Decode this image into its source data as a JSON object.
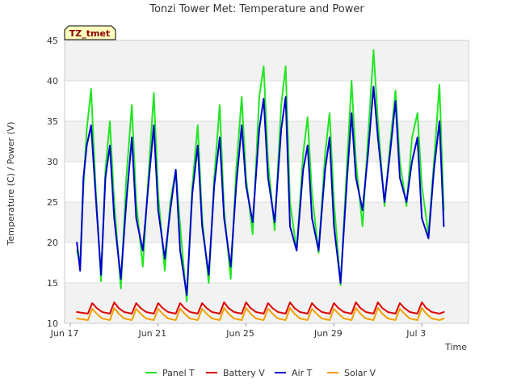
{
  "chart_data": {
    "type": "line",
    "title": "Tonzi Tower Met: Temperature and Power",
    "badge": "TZ_tmet",
    "xlabel": "Time",
    "ylabel": "Temperature (C) / Power (V)",
    "ylim": [
      10,
      45
    ],
    "yticks": [
      10,
      15,
      20,
      25,
      30,
      35,
      40,
      45
    ],
    "xlim": [
      0,
      18
    ],
    "xticks": [
      {
        "day": 0,
        "label": "Jun 17"
      },
      {
        "day": 4,
        "label": "Jun 21"
      },
      {
        "day": 8,
        "label": "Jun 25"
      },
      {
        "day": 12,
        "label": "Jun 29"
      },
      {
        "day": 16,
        "label": "Jul 3"
      }
    ],
    "grid": "horizontal bands",
    "series": [
      {
        "name": "Panel T",
        "color": "#22e622",
        "x": [
          0.3,
          0.45,
          0.6,
          0.75,
          0.95,
          1.15,
          1.4,
          1.6,
          1.8,
          2.0,
          2.3,
          2.55,
          2.8,
          3.0,
          3.3,
          3.55,
          3.8,
          4.0,
          4.3,
          4.55,
          4.8,
          5.0,
          5.3,
          5.55,
          5.8,
          6.0,
          6.3,
          6.55,
          6.8,
          7.0,
          7.3,
          7.55,
          7.8,
          8.0,
          8.3,
          8.6,
          8.8,
          9.0,
          9.3,
          9.6,
          9.8,
          10.0,
          10.3,
          10.6,
          10.8,
          11.0,
          11.3,
          11.6,
          11.8,
          12.0,
          12.3,
          12.6,
          12.8,
          13.0,
          13.3,
          13.55,
          13.8,
          14.0,
          14.3,
          14.55,
          14.8,
          15.0,
          15.3,
          15.55,
          15.8,
          16.0,
          16.3,
          16.55,
          16.8,
          17.0
        ],
        "y": [
          19,
          17.5,
          27,
          34,
          39,
          27,
          15.2,
          29,
          35,
          25,
          14.3,
          28,
          37,
          25,
          17,
          28,
          38.5,
          26,
          16.5,
          25,
          29,
          22,
          12.7,
          27,
          34.5,
          23,
          15,
          28,
          37,
          24,
          15.5,
          29,
          38,
          28,
          21,
          38,
          41.8,
          30,
          21.5,
          37,
          41.8,
          25,
          19,
          31,
          35.5,
          26,
          18.7,
          31,
          36,
          25,
          14.7,
          30,
          40,
          30,
          22,
          33,
          43.8,
          35,
          24.5,
          32,
          38.8,
          30,
          24.5,
          33,
          36,
          27,
          21,
          30,
          39.5,
          24
        ]
      },
      {
        "name": "Battery V",
        "color": "#dd0000",
        "x": [
          0.3,
          0.8,
          1.0,
          1.2,
          1.45,
          1.8,
          2.0,
          2.2,
          2.45,
          2.8,
          3.0,
          3.2,
          3.45,
          3.8,
          4.0,
          4.2,
          4.45,
          4.8,
          5.0,
          5.2,
          5.45,
          5.8,
          6.0,
          6.2,
          6.45,
          6.8,
          7.0,
          7.2,
          7.45,
          7.8,
          8.0,
          8.2,
          8.45,
          8.8,
          9.0,
          9.2,
          9.45,
          9.8,
          10.0,
          10.2,
          10.45,
          10.8,
          11.0,
          11.2,
          11.45,
          11.8,
          12.0,
          12.2,
          12.45,
          12.8,
          13.0,
          13.2,
          13.45,
          13.8,
          14.0,
          14.2,
          14.45,
          14.8,
          15.0,
          15.2,
          15.45,
          15.8,
          16.0,
          16.2,
          16.45,
          16.8,
          17.0
        ],
        "y": [
          11.4,
          11.2,
          12.5,
          11.9,
          11.4,
          11.2,
          12.6,
          11.9,
          11.4,
          11.2,
          12.5,
          11.9,
          11.4,
          11.2,
          12.5,
          11.9,
          11.4,
          11.2,
          12.5,
          11.9,
          11.4,
          11.2,
          12.5,
          11.9,
          11.4,
          11.2,
          12.6,
          11.9,
          11.4,
          11.2,
          12.6,
          11.9,
          11.4,
          11.2,
          12.5,
          11.9,
          11.4,
          11.2,
          12.6,
          11.9,
          11.4,
          11.2,
          12.5,
          11.9,
          11.4,
          11.2,
          12.5,
          11.9,
          11.4,
          11.2,
          12.6,
          11.9,
          11.4,
          11.2,
          12.6,
          11.9,
          11.4,
          11.2,
          12.5,
          11.9,
          11.4,
          11.2,
          12.6,
          11.9,
          11.4,
          11.2,
          11.4
        ]
      },
      {
        "name": "Air T",
        "color": "#0000cc",
        "x": [
          0.3,
          0.45,
          0.6,
          0.75,
          0.95,
          1.15,
          1.4,
          1.6,
          1.8,
          2.0,
          2.3,
          2.55,
          2.8,
          3.0,
          3.3,
          3.55,
          3.8,
          4.0,
          4.3,
          4.55,
          4.8,
          5.0,
          5.3,
          5.55,
          5.8,
          6.0,
          6.3,
          6.55,
          6.8,
          7.0,
          7.3,
          7.55,
          7.8,
          8.0,
          8.3,
          8.6,
          8.8,
          9.0,
          9.3,
          9.6,
          9.8,
          10.0,
          10.3,
          10.6,
          10.8,
          11.0,
          11.3,
          11.6,
          11.8,
          12.0,
          12.3,
          12.6,
          12.8,
          13.0,
          13.3,
          13.55,
          13.8,
          14.0,
          14.3,
          14.55,
          14.8,
          15.0,
          15.3,
          15.55,
          15.8,
          16.0,
          16.3,
          16.55,
          16.8,
          17.0
        ],
        "y": [
          20,
          16.5,
          28,
          32,
          34.5,
          26,
          16,
          28,
          32,
          23,
          15.5,
          25,
          33,
          23,
          19,
          27,
          34.5,
          24,
          18,
          24,
          29,
          19,
          13.5,
          26,
          32,
          22,
          16,
          27,
          33,
          23,
          17,
          27,
          34.5,
          27,
          22.5,
          34,
          37.8,
          28,
          22.5,
          34,
          38,
          22,
          19,
          29,
          32,
          23,
          19,
          29,
          33,
          22,
          15,
          28,
          36,
          28,
          24,
          31,
          39.3,
          33,
          25,
          31,
          37.5,
          28,
          25,
          30,
          33,
          23,
          20.5,
          29,
          35,
          22
        ]
      },
      {
        "name": "Solar V",
        "color": "#f0a000",
        "x": [
          0.3,
          0.8,
          1.0,
          1.2,
          1.45,
          1.8,
          2.0,
          2.2,
          2.45,
          2.8,
          3.0,
          3.2,
          3.45,
          3.8,
          4.0,
          4.2,
          4.45,
          4.8,
          5.0,
          5.2,
          5.45,
          5.8,
          6.0,
          6.2,
          6.45,
          6.8,
          7.0,
          7.2,
          7.45,
          7.8,
          8.0,
          8.2,
          8.45,
          8.8,
          9.0,
          9.2,
          9.45,
          9.8,
          10.0,
          10.2,
          10.45,
          10.8,
          11.0,
          11.2,
          11.45,
          11.8,
          12.0,
          12.2,
          12.45,
          12.8,
          13.0,
          13.2,
          13.45,
          13.8,
          14.0,
          14.2,
          14.45,
          14.8,
          15.0,
          15.2,
          15.45,
          15.8,
          16.0,
          16.2,
          16.45,
          16.8,
          17.0
        ],
        "y": [
          10.6,
          10.4,
          11.8,
          11.2,
          10.6,
          10.4,
          11.9,
          11.2,
          10.6,
          10.4,
          11.8,
          11.2,
          10.6,
          10.4,
          11.8,
          11.2,
          10.6,
          10.4,
          11.8,
          11.2,
          10.6,
          10.4,
          11.8,
          11.2,
          10.6,
          10.4,
          11.9,
          11.2,
          10.6,
          10.4,
          11.9,
          11.2,
          10.6,
          10.4,
          11.8,
          11.2,
          10.6,
          10.4,
          11.9,
          11.2,
          10.6,
          10.4,
          11.8,
          11.2,
          10.6,
          10.4,
          11.8,
          11.2,
          10.6,
          10.4,
          11.9,
          11.2,
          10.6,
          10.4,
          11.9,
          11.2,
          10.6,
          10.4,
          11.8,
          11.2,
          10.6,
          10.4,
          11.9,
          11.2,
          10.6,
          10.4,
          10.6
        ]
      }
    ]
  }
}
